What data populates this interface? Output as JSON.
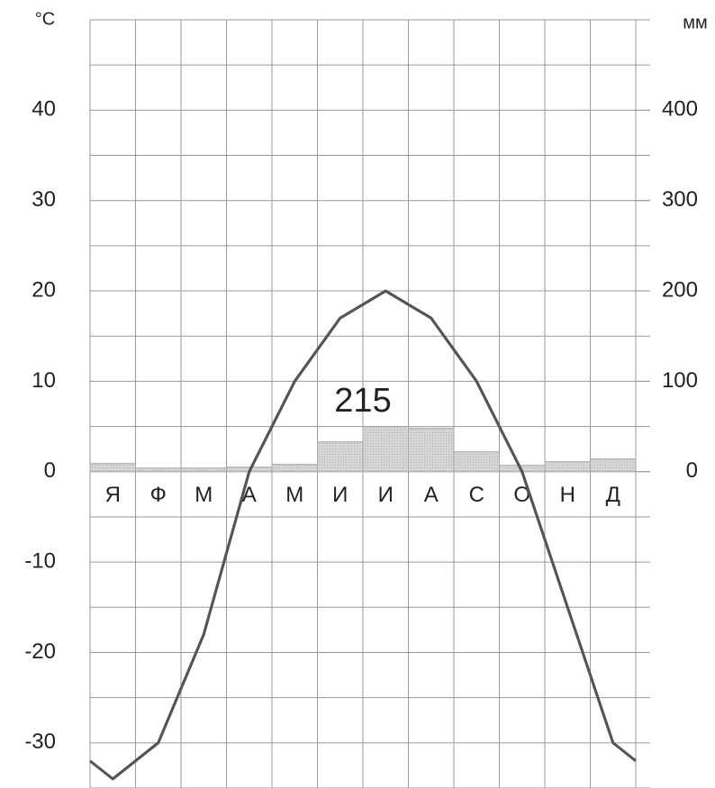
{
  "chart_data": {
    "type": "climate",
    "y_label": "°C",
    "y2_label": "мм",
    "categories": [
      "Я",
      "Ф",
      "М",
      "А",
      "М",
      "И",
      "И",
      "А",
      "С",
      "О",
      "Н",
      "Д"
    ],
    "series": [
      {
        "name": "temperature",
        "color": "#555555",
        "values": [
          -34,
          -30,
          -18,
          0,
          10,
          17,
          20,
          17,
          10,
          0,
          -15,
          -30
        ]
      },
      {
        "name": "precipitation",
        "color": "#cccccc",
        "axis": "y2",
        "values": [
          9,
          4,
          4,
          5,
          8,
          33,
          50,
          48,
          22,
          7,
          11,
          14
        ]
      }
    ],
    "annotation": "215",
    "ylim": [
      -35,
      50
    ],
    "yticks": [
      -30,
      -20,
      -10,
      0,
      10,
      20,
      30,
      40
    ],
    "y2lim": [
      -350,
      500
    ],
    "y2ticks": [
      0,
      100,
      200,
      300,
      400
    ],
    "grid": true
  }
}
